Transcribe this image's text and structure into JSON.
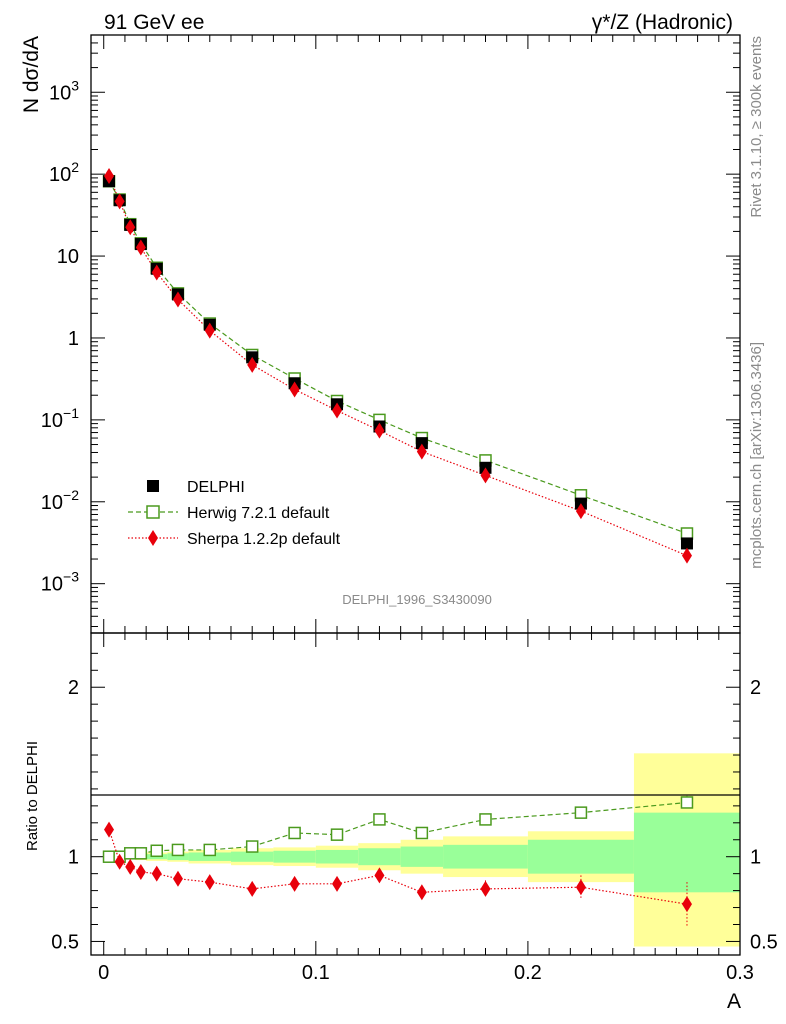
{
  "header": {
    "left_title": "91 GeV ee",
    "right_title": "γ*/Z (Hadronic)"
  },
  "side_labels": {
    "rivet": "Rivet 3.1.10, ≥ 300k events",
    "mcplots": "mcplots.cern.ch [arXiv:1306.3436]"
  },
  "chart_data": [
    {
      "type": "scatter",
      "panel": "main",
      "yscale": "log",
      "ylabel": "N dσ/dA",
      "ylim": [
        0.00025,
        5000
      ],
      "xlim": [
        -0.006,
        0.3
      ],
      "watermark": "DELPHI_1996_S3430090",
      "y_ticks": [
        {
          "v": 0.001,
          "base": "10",
          "exp": "−3"
        },
        {
          "v": 0.01,
          "base": "10",
          "exp": "−2"
        },
        {
          "v": 0.1,
          "base": "10",
          "exp": "−1"
        },
        {
          "v": 1,
          "base": "1",
          "exp": ""
        },
        {
          "v": 10,
          "base": "10",
          "exp": ""
        },
        {
          "v": 100,
          "base": "10",
          "exp": "2"
        },
        {
          "v": 1000,
          "base": "10",
          "exp": "3"
        }
      ],
      "x": [
        0.0025,
        0.0075,
        0.0125,
        0.0175,
        0.025,
        0.035,
        0.05,
        0.07,
        0.09,
        0.11,
        0.13,
        0.15,
        0.18,
        0.225,
        0.275
      ],
      "series": [
        {
          "name": "DELPHI",
          "color": "#000000",
          "marker": "filled-square",
          "values": [
            82,
            48,
            24,
            14,
            7.0,
            3.4,
            1.45,
            0.58,
            0.28,
            0.155,
            0.083,
            0.052,
            0.026,
            0.0095,
            0.0031
          ]
        },
        {
          "name": "Herwig 7.2.1 default",
          "color": "#4b9a1e",
          "marker": "open-square",
          "line": "dashed",
          "values": [
            82,
            49,
            24.5,
            14.3,
            7.2,
            3.5,
            1.5,
            0.62,
            0.32,
            0.17,
            0.1,
            0.06,
            0.032,
            0.012,
            0.0041
          ]
        },
        {
          "name": "Sherpa 1.2.2p default",
          "color": "#e8000b",
          "marker": "diamond",
          "line": "dotted",
          "values": [
            95,
            46.5,
            22.5,
            12.7,
            6.3,
            2.95,
            1.23,
            0.47,
            0.235,
            0.13,
            0.074,
            0.041,
            0.021,
            0.0077,
            0.0022
          ]
        }
      ]
    },
    {
      "type": "scatter",
      "panel": "ratio",
      "ylabel": "Ratio to DELPHI",
      "ylim": [
        0.42,
        2.32
      ],
      "xlabel": "A",
      "y_ticks": [
        {
          "v": 0.5,
          "label": "0.5"
        },
        {
          "v": 1,
          "label": "1"
        },
        {
          "v": 2,
          "label": "2"
        }
      ],
      "x_ticks": [
        {
          "v": 0,
          "label": "0"
        },
        {
          "v": 0.1,
          "label": "0.1"
        },
        {
          "v": 0.2,
          "label": "0.2"
        },
        {
          "v": 0.3,
          "label": "0.3"
        }
      ],
      "uncertainty_bands": [
        {
          "x0": 0.0,
          "x1": 0.005,
          "stat_lo": 0.995,
          "stat_hi": 1.005,
          "tot_lo": 0.99,
          "tot_hi": 1.01
        },
        {
          "x0": 0.005,
          "x1": 0.01,
          "stat_lo": 0.995,
          "stat_hi": 1.005,
          "tot_lo": 0.99,
          "tot_hi": 1.01
        },
        {
          "x0": 0.01,
          "x1": 0.015,
          "stat_lo": 0.99,
          "stat_hi": 1.01,
          "tot_lo": 0.985,
          "tot_hi": 1.015
        },
        {
          "x0": 0.015,
          "x1": 0.02,
          "stat_lo": 0.99,
          "stat_hi": 1.01,
          "tot_lo": 0.98,
          "tot_hi": 1.02
        },
        {
          "x0": 0.02,
          "x1": 0.03,
          "stat_lo": 0.985,
          "stat_hi": 1.015,
          "tot_lo": 0.975,
          "tot_hi": 1.025
        },
        {
          "x0": 0.03,
          "x1": 0.04,
          "stat_lo": 0.98,
          "stat_hi": 1.02,
          "tot_lo": 0.97,
          "tot_hi": 1.03
        },
        {
          "x0": 0.04,
          "x1": 0.06,
          "stat_lo": 0.975,
          "stat_hi": 1.025,
          "tot_lo": 0.96,
          "tot_hi": 1.04
        },
        {
          "x0": 0.06,
          "x1": 0.08,
          "stat_lo": 0.97,
          "stat_hi": 1.03,
          "tot_lo": 0.95,
          "tot_hi": 1.05
        },
        {
          "x0": 0.08,
          "x1": 0.1,
          "stat_lo": 0.965,
          "stat_hi": 1.035,
          "tot_lo": 0.945,
          "tot_hi": 1.055
        },
        {
          "x0": 0.1,
          "x1": 0.12,
          "stat_lo": 0.96,
          "stat_hi": 1.04,
          "tot_lo": 0.935,
          "tot_hi": 1.065
        },
        {
          "x0": 0.12,
          "x1": 0.14,
          "stat_lo": 0.95,
          "stat_hi": 1.05,
          "tot_lo": 0.92,
          "tot_hi": 1.08
        },
        {
          "x0": 0.14,
          "x1": 0.16,
          "stat_lo": 0.94,
          "stat_hi": 1.06,
          "tot_lo": 0.9,
          "tot_hi": 1.1
        },
        {
          "x0": 0.16,
          "x1": 0.2,
          "stat_lo": 0.93,
          "stat_hi": 1.07,
          "tot_lo": 0.88,
          "tot_hi": 1.12
        },
        {
          "x0": 0.2,
          "x1": 0.25,
          "stat_lo": 0.9,
          "stat_hi": 1.1,
          "tot_lo": 0.85,
          "tot_hi": 1.15
        },
        {
          "x0": 0.25,
          "x1": 0.3,
          "stat_lo": 0.79,
          "stat_hi": 1.26,
          "tot_lo": 0.47,
          "tot_hi": 1.61
        }
      ],
      "series": [
        {
          "name": "Herwig 7.2.1 default",
          "color": "#4b9a1e",
          "marker": "open-square",
          "line": "dashed",
          "values": [
            1.0,
            1.0,
            1.02,
            1.02,
            1.035,
            1.04,
            1.04,
            1.06,
            1.14,
            1.13,
            1.22,
            1.14,
            1.22,
            1.26,
            1.32
          ],
          "err": [
            0.01,
            0.01,
            0.01,
            0.01,
            0.01,
            0.01,
            0.01,
            0.01,
            0.01,
            0.015,
            0.015,
            0.02,
            0.02,
            0.02,
            0.04
          ]
        },
        {
          "name": "Sherpa 1.2.2p default",
          "color": "#e8000b",
          "marker": "diamond",
          "line": "dotted",
          "values": [
            1.16,
            0.97,
            0.94,
            0.91,
            0.9,
            0.87,
            0.85,
            0.81,
            0.84,
            0.84,
            0.89,
            0.79,
            0.81,
            0.82,
            0.72
          ],
          "err": [
            0.02,
            0.01,
            0.01,
            0.01,
            0.01,
            0.01,
            0.01,
            0.015,
            0.015,
            0.02,
            0.03,
            0.04,
            0.05,
            0.07,
            0.13
          ]
        }
      ]
    }
  ]
}
